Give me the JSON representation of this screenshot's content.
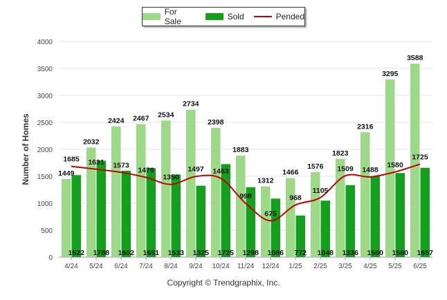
{
  "legend": {
    "for_sale": "For Sale",
    "sold": "Sold",
    "pended": "Pended"
  },
  "copyright": "Copyright © Trendgraphix, Inc.",
  "colors": {
    "for_sale": "#9ed98a",
    "sold": "#14a01e",
    "pended": "#c00000",
    "grid": "#e6e6e6"
  },
  "chart_data": {
    "type": "bar",
    "categories": [
      "4/24",
      "5/24",
      "6/24",
      "7/24",
      "8/24",
      "9/24",
      "10/24",
      "11/24",
      "12/24",
      "1/25",
      "2/25",
      "3/25",
      "4/25",
      "5/25",
      "6/25"
    ],
    "series": [
      {
        "name": "For Sale",
        "type": "bar",
        "values": [
          1449,
          2032,
          2424,
          2467,
          2534,
          2734,
          2398,
          1883,
          1312,
          1466,
          1576,
          1823,
          2316,
          3295,
          3588
        ]
      },
      {
        "name": "Sold",
        "type": "bar",
        "values": [
          1522,
          1788,
          1602,
          1651,
          1533,
          1325,
          1725,
          1298,
          1086,
          772,
          1048,
          1336,
          1500,
          1560,
          1657
        ]
      },
      {
        "name": "Pended",
        "type": "line",
        "values": [
          1685,
          1631,
          1573,
          1479,
          1350,
          1497,
          1463,
          998,
          675,
          968,
          1105,
          1509,
          1488,
          1580,
          1725
        ]
      }
    ],
    "xlabel": "",
    "ylabel": "Number of Homes",
    "ylim": [
      0,
      4000
    ],
    "yticks": [
      0,
      500,
      1000,
      1500,
      2000,
      2500,
      3000,
      3500,
      4000
    ],
    "grid": true,
    "legend_position": "top-center"
  }
}
